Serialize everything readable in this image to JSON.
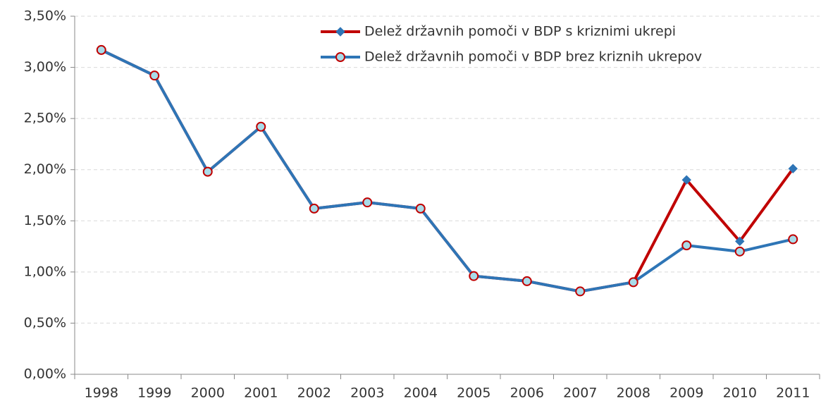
{
  "chart_data": {
    "type": "line",
    "categories": [
      "1998",
      "1999",
      "2000",
      "2001",
      "2002",
      "2003",
      "2004",
      "2005",
      "2006",
      "2007",
      "2008",
      "2009",
      "2010",
      "2011"
    ],
    "series": [
      {
        "name": "Delež državnih pomoči v BDP s kriznimi ukrepi",
        "color": "#c00000",
        "marker": "diamond",
        "marker_fill": "#2e75b6",
        "marker_stroke": "#2e75b6",
        "values": [
          3.17,
          2.92,
          1.98,
          2.42,
          1.62,
          1.68,
          1.62,
          0.96,
          0.91,
          0.81,
          0.9,
          1.9,
          1.3,
          2.01
        ]
      },
      {
        "name": "Delež državnih pomoči v BDP brez kriznih ukrepov",
        "color": "#2e75b6",
        "marker": "circle",
        "marker_fill": "#a9dbe8",
        "marker_stroke": "#c00000",
        "values": [
          3.17,
          2.92,
          1.98,
          2.42,
          1.62,
          1.68,
          1.62,
          0.96,
          0.91,
          0.81,
          0.9,
          1.26,
          1.2,
          1.32
        ]
      }
    ],
    "ylim": [
      0,
      3.5
    ],
    "yticks": [
      {
        "value": 0,
        "label": "0,00%"
      },
      {
        "value": 0.5,
        "label": "0,50%"
      },
      {
        "value": 1,
        "label": "1,00%"
      },
      {
        "value": 1.5,
        "label": "1,50%"
      },
      {
        "value": 2,
        "label": "2,00%"
      },
      {
        "value": 2.5,
        "label": "2,50%"
      },
      {
        "value": 3,
        "label": "3,00%"
      },
      {
        "value": 3.5,
        "label": "3,50%"
      }
    ],
    "grid": true,
    "legend": "top-right"
  }
}
